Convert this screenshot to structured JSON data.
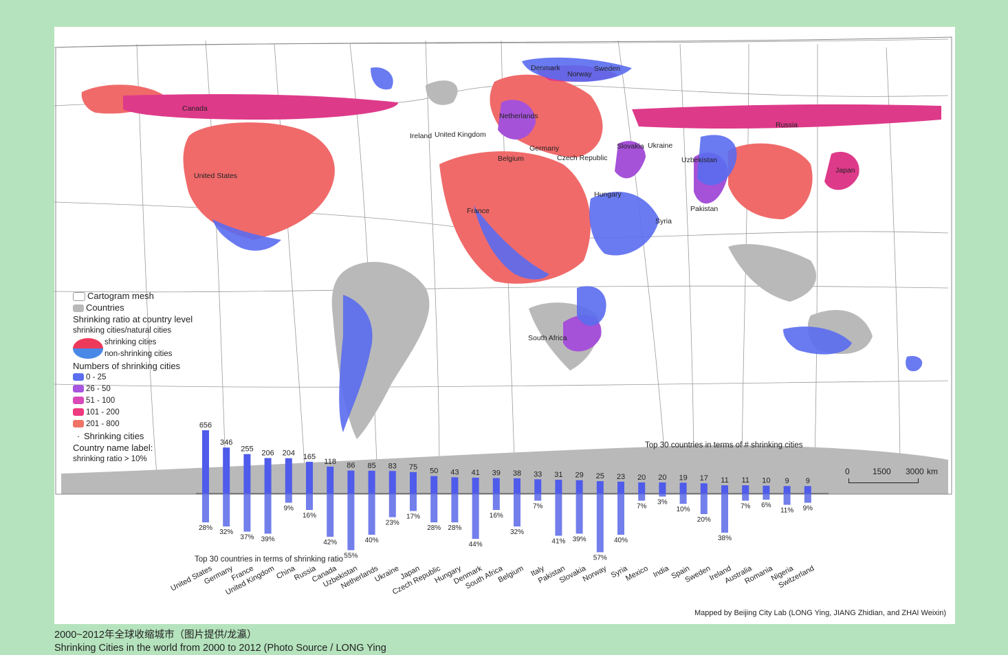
{
  "map": {
    "country_labels": [
      {
        "name": "Canada"
      },
      {
        "name": "United States"
      },
      {
        "name": "Denmark"
      },
      {
        "name": "Norway"
      },
      {
        "name": "Sweden"
      },
      {
        "name": "Netherlands"
      },
      {
        "name": "Ireland"
      },
      {
        "name": "United Kingdom"
      },
      {
        "name": "Germany"
      },
      {
        "name": "Belgium"
      },
      {
        "name": "Czech Republic"
      },
      {
        "name": "Slovakia"
      },
      {
        "name": "Ukraine"
      },
      {
        "name": "Russia"
      },
      {
        "name": "Uzbekistan"
      },
      {
        "name": "Japan"
      },
      {
        "name": "Hungary"
      },
      {
        "name": "France"
      },
      {
        "name": "Pakistan"
      },
      {
        "name": "Syria"
      },
      {
        "name": "South Africa"
      }
    ]
  },
  "legend": {
    "mesh": "Cartogram mesh",
    "countries": "Countries",
    "ratio_title": "Shrinking ratio at country level",
    "ratio_sub": "shrinking cities/natural cities",
    "shrinking": "shrinking cities",
    "non_shrinking": "non-shrinking cities",
    "numbers_title": "Numbers of shrinking cities",
    "classes": [
      {
        "label": "0 - 25",
        "color": "#5b6ef0"
      },
      {
        "label": "26 - 50",
        "color": "#a855e0"
      },
      {
        "label": "51 - 100",
        "color": "#d84ab8"
      },
      {
        "label": "101 - 200",
        "color": "#ee3a7e"
      },
      {
        "label": "201 - 800",
        "color": "#f07466"
      }
    ],
    "cities": "Shrinking cities",
    "name_label": "Country name label:",
    "name_rule": "shrinking ratio > 10%"
  },
  "chart_data": {
    "type": "bar",
    "title_top": "Top 30 countries in terms of # shrinking cities",
    "title_bottom": "Top 30 countries in terms of shrinking ratio",
    "count_categories": [
      "United States",
      "Germany",
      "France",
      "United Kingdom",
      "China",
      "Russia",
      "Canada",
      "Uzbekistan",
      "Netherlands",
      "Ukraine",
      "Japan",
      "Czech Republic",
      "Hungary",
      "Denmark",
      "South Africa",
      "Belgium",
      "Italy",
      "Pakistan",
      "Slovakia",
      "Norway",
      "Syria",
      "Mexico",
      "India",
      "Spain",
      "Sweden",
      "Ireland",
      "Australia",
      "Romania",
      "Nigeria",
      "Switzerland"
    ],
    "counts": [
      656,
      346,
      255,
      206,
      204,
      165,
      118,
      86,
      85,
      83,
      75,
      50,
      43,
      41,
      39,
      38,
      33,
      31,
      29,
      25,
      23,
      20,
      20,
      19,
      17,
      11,
      11,
      10,
      9,
      9
    ],
    "ratios": [
      "28%",
      "32%",
      "37%",
      "39%",
      "9%",
      "16%",
      "42%",
      "55%",
      "40%",
      "23%",
      "17%",
      "28%",
      "28%",
      "44%",
      "16%",
      "32%",
      "7%",
      "41%",
      "39%",
      "57%",
      "40%",
      "7%",
      "3%",
      "10%",
      "20%",
      "38%",
      "7%",
      "6%",
      "11%",
      "9%"
    ],
    "ratio_values": [
      28,
      32,
      37,
      39,
      9,
      16,
      42,
      55,
      40,
      23,
      17,
      28,
      28,
      44,
      16,
      32,
      7,
      41,
      39,
      57,
      40,
      7,
      3,
      10,
      20,
      38,
      7,
      6,
      11,
      9
    ]
  },
  "scale": {
    "t0": "0",
    "t1": "1500",
    "t2": "3000",
    "unit": "km"
  },
  "credit": "Mapped by Beijing City Lab (LONG Ying, JIANG Zhidian, and ZHAI Weixin)",
  "caption": {
    "zh": "2000~2012年全球收缩城市（图片提供/龙瀛）",
    "en": "Shrinking Cities in the world from 2000 to 2012 (Photo Source / LONG Ying"
  }
}
